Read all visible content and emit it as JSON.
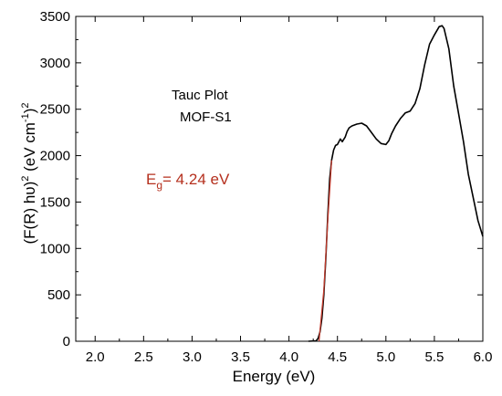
{
  "chart_data": {
    "type": "line",
    "title": "",
    "xlabel": "Energy (eV)",
    "ylabel_parts": [
      "(F(R) hυ)",
      "2",
      " (eV cm",
      "-1",
      ")",
      "2"
    ],
    "xlim": [
      1.8,
      6.0
    ],
    "ylim": [
      0,
      3500
    ],
    "x_ticks": [
      2.0,
      2.5,
      3.0,
      3.5,
      4.0,
      4.5,
      5.0,
      5.5,
      6.0
    ],
    "y_ticks": [
      0,
      500,
      1000,
      1500,
      2000,
      2500,
      3000,
      3500
    ],
    "grid": false,
    "annotations": {
      "plot_name": "Tauc Plot",
      "sample": "MOF-S1",
      "eg_symbol": "E",
      "eg_sub": "g",
      "eg_value": "= 4.24 eV"
    },
    "series": [
      {
        "color": "#000000",
        "x": [
          4.2,
          4.28,
          4.3,
          4.32,
          4.34,
          4.36,
          4.38,
          4.4,
          4.42,
          4.44,
          4.46,
          4.48,
          4.5,
          4.53,
          4.55,
          4.58,
          4.6,
          4.62,
          4.65,
          4.7,
          4.75,
          4.8,
          4.85,
          4.9,
          4.95,
          5.0,
          5.03,
          5.06,
          5.1,
          5.15,
          5.2,
          5.25,
          5.3,
          5.35,
          5.4,
          5.45,
          5.5,
          5.55,
          5.58,
          5.6,
          5.65,
          5.7,
          5.75,
          5.8,
          5.85,
          5.9,
          5.95,
          6.0
        ],
        "y": [
          0,
          5,
          30,
          100,
          250,
          500,
          900,
          1350,
          1750,
          1950,
          2060,
          2110,
          2120,
          2180,
          2150,
          2200,
          2260,
          2300,
          2320,
          2340,
          2350,
          2320,
          2250,
          2180,
          2130,
          2120,
          2160,
          2240,
          2320,
          2400,
          2460,
          2480,
          2560,
          2720,
          2980,
          3200,
          3300,
          3390,
          3400,
          3370,
          3150,
          2750,
          2450,
          2150,
          1800,
          1550,
          1300,
          1130
        ]
      },
      {
        "color": "#c0392b",
        "x": [
          4.31,
          4.36,
          4.4,
          4.44
        ],
        "y": [
          0,
          550,
          1300,
          1950
        ]
      }
    ]
  }
}
